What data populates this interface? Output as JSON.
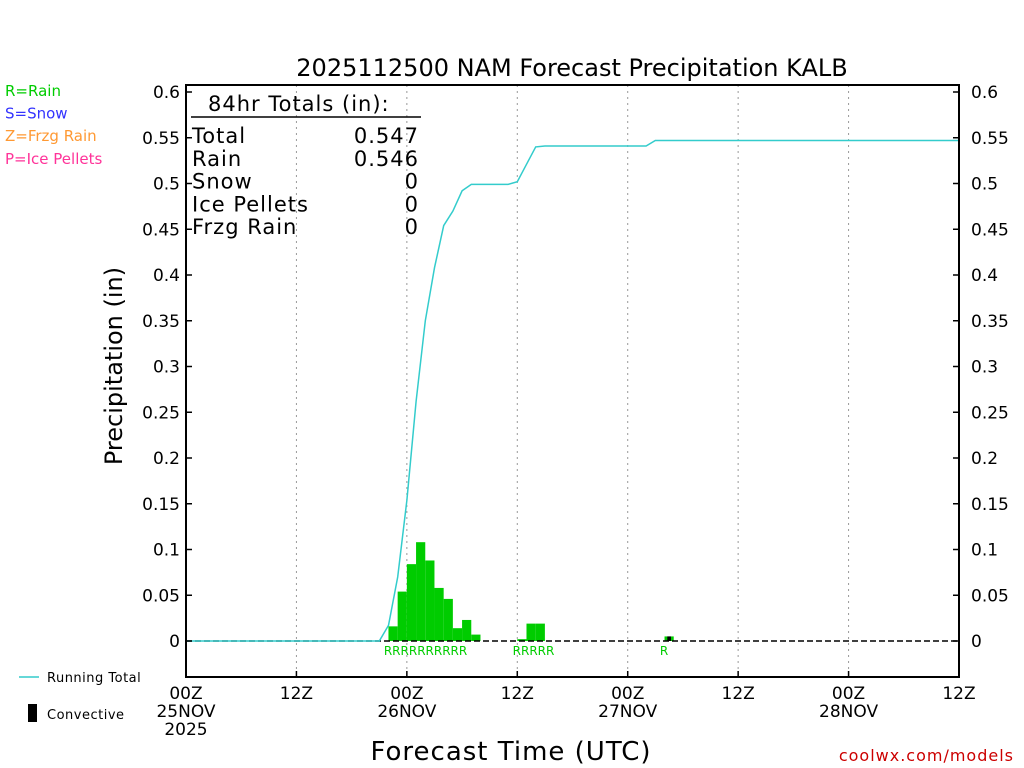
{
  "chart_data": {
    "type": "bar",
    "title": "2025112500 NAM Forecast Precipitation KALB",
    "xlabel": "Forecast Time (UTC)",
    "ylabel": "Precipitation (in)",
    "ylim": [
      -0.04,
      0.6
    ],
    "xlim_hours": [
      0,
      84
    ],
    "grid_x_dashed": true,
    "yticks": [
      {
        "value": 0.6,
        "label": "0.6"
      },
      {
        "value": 0.55,
        "label": "0.55"
      },
      {
        "value": 0.5,
        "label": "0.5"
      },
      {
        "value": 0.45,
        "label": "0.45"
      },
      {
        "value": 0.4,
        "label": "0.4"
      },
      {
        "value": 0.35,
        "label": "0.35"
      },
      {
        "value": 0.3,
        "label": "0.3"
      },
      {
        "value": 0.25,
        "label": "0.25"
      },
      {
        "value": 0.2,
        "label": "0.2"
      },
      {
        "value": 0.15,
        "label": "0.15"
      },
      {
        "value": 0.1,
        "label": "0.1"
      },
      {
        "value": 0.05,
        "label": "0.05"
      },
      {
        "value": 0,
        "label": "0"
      }
    ],
    "xticks": [
      {
        "hour": 0,
        "lines": [
          "00Z",
          "25NOV",
          "2025"
        ]
      },
      {
        "hour": 12,
        "lines": [
          "12Z"
        ]
      },
      {
        "hour": 24,
        "lines": [
          "00Z",
          "26NOV"
        ]
      },
      {
        "hour": 36,
        "lines": [
          "12Z"
        ]
      },
      {
        "hour": 48,
        "lines": [
          "00Z",
          "27NOV"
        ]
      },
      {
        "hour": 60,
        "lines": [
          "12Z"
        ]
      },
      {
        "hour": 72,
        "lines": [
          "00Z",
          "28NOV"
        ]
      },
      {
        "hour": 84,
        "lines": [
          "12Z"
        ]
      }
    ],
    "bars": [
      {
        "hour": 22,
        "value": 0.016,
        "type": "rain"
      },
      {
        "hour": 23,
        "value": 0.054,
        "type": "rain"
      },
      {
        "hour": 24,
        "value": 0.084,
        "type": "rain"
      },
      {
        "hour": 25,
        "value": 0.108,
        "type": "rain"
      },
      {
        "hour": 26,
        "value": 0.088,
        "type": "rain"
      },
      {
        "hour": 27,
        "value": 0.058,
        "type": "rain"
      },
      {
        "hour": 28,
        "value": 0.046,
        "type": "rain"
      },
      {
        "hour": 29,
        "value": 0.014,
        "type": "rain"
      },
      {
        "hour": 30,
        "value": 0.023,
        "type": "rain"
      },
      {
        "hour": 31,
        "value": 0.007,
        "type": "rain"
      },
      {
        "hour": 36,
        "value": 0.002,
        "type": "rain"
      },
      {
        "hour": 37,
        "value": 0.019,
        "type": "rain"
      },
      {
        "hour": 38,
        "value": 0.019,
        "type": "rain"
      },
      {
        "hour": 52,
        "value": 0.005,
        "type": "rain",
        "convective": true
      }
    ],
    "ptype_labels": [
      {
        "hour": 21.5,
        "text": "RRRRRRRRRR"
      },
      {
        "hour": 35.5,
        "text": "RRRRR"
      },
      {
        "hour": 51.5,
        "text": "R"
      }
    ],
    "running_total": {
      "name": "Running Total",
      "x": [
        0,
        21,
        22,
        23,
        24,
        25,
        26,
        27,
        28,
        29,
        30,
        31,
        32,
        33,
        34,
        35,
        36,
        37,
        38,
        39,
        40,
        48,
        50,
        51,
        84
      ],
      "y": [
        0,
        0,
        0.017,
        0.07,
        0.154,
        0.262,
        0.35,
        0.408,
        0.454,
        0.47,
        0.492,
        0.499,
        0.499,
        0.499,
        0.499,
        0.499,
        0.502,
        0.521,
        0.54,
        0.541,
        0.541,
        0.541,
        0.541,
        0.547,
        0.547
      ]
    },
    "totals_box": {
      "header": "84hr Totals (in):",
      "rows": [
        {
          "label": "Total",
          "value": "0.547"
        },
        {
          "label": "Rain",
          "value": "0.546"
        },
        {
          "label": "Snow",
          "value": "0"
        },
        {
          "label": "Ice Pellets",
          "value": "0"
        },
        {
          "label": "Frzg Rain",
          "value": "0"
        }
      ]
    },
    "type_legend": [
      {
        "text": "R=Rain",
        "color": "#00cc00"
      },
      {
        "text": "S=Snow",
        "color": "#3333ff"
      },
      {
        "text": "Z=Frzg Rain",
        "color": "#ff9933"
      },
      {
        "text": "P=Ice Pellets",
        "color": "#ff3399"
      }
    ],
    "series_legend": [
      {
        "name": "Running Total",
        "color": "#33cccc"
      },
      {
        "name": "Convective",
        "color": "#000000"
      }
    ],
    "colors": {
      "rain": "#00cc00",
      "running_total": "#33cccc",
      "convective": "#000000"
    }
  },
  "credit": "coolwx.com/models"
}
